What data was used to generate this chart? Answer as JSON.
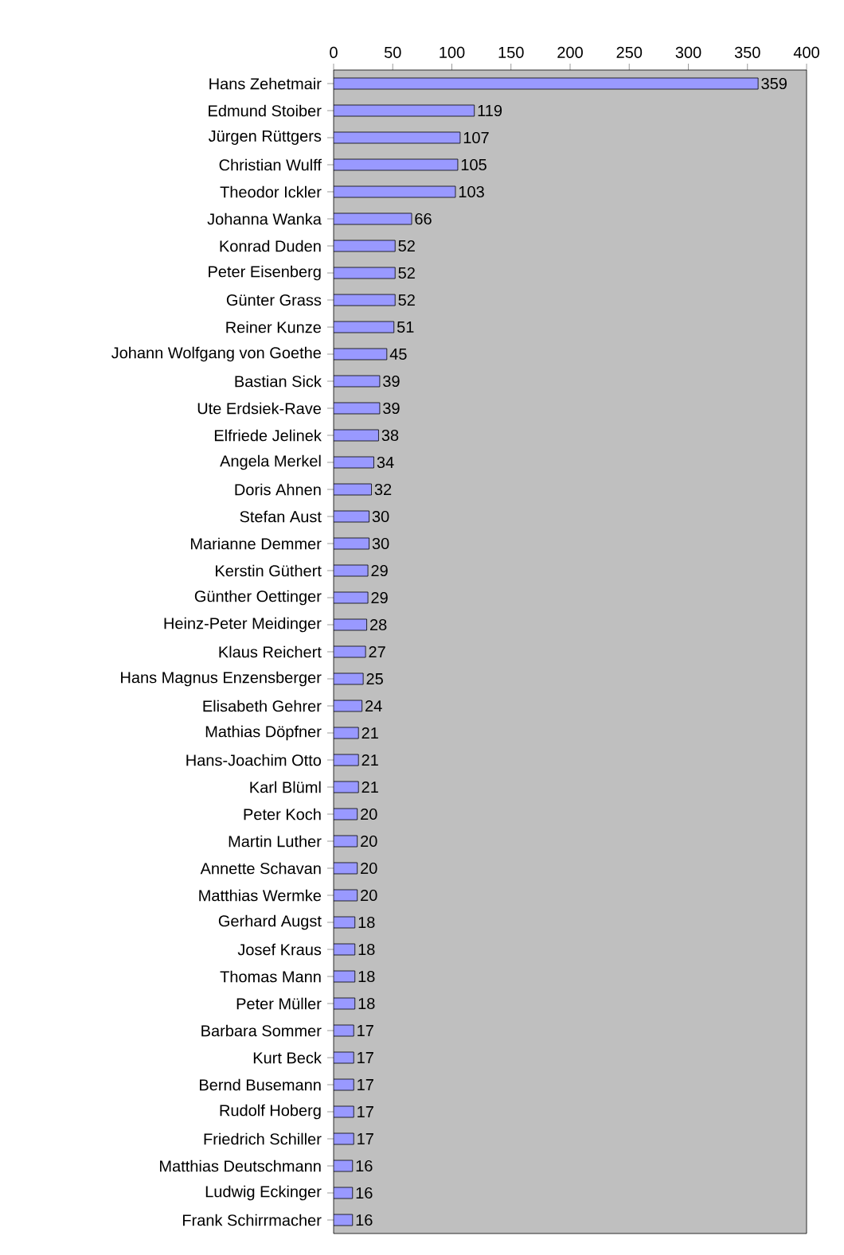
{
  "chart_data": {
    "type": "bar",
    "orientation": "horizontal",
    "categories": [
      "Hans Zehetmair",
      "Edmund Stoiber",
      "Jürgen Rüttgers",
      "Christian Wulff",
      "Theodor Ickler",
      "Johanna Wanka",
      "Konrad Duden",
      "Peter Eisenberg",
      "Günter Grass",
      "Reiner Kunze",
      "Johann Wolfgang von Goethe",
      "Bastian Sick",
      "Ute Erdsiek-Rave",
      "Elfriede Jelinek",
      "Angela Merkel",
      "Doris Ahnen",
      "Stefan Aust",
      "Marianne Demmer",
      "Kerstin Güthert",
      "Günther Oettinger",
      "Heinz-Peter Meidinger",
      "Klaus Reichert",
      "Hans Magnus Enzensberger",
      "Elisabeth Gehrer",
      "Mathias Döpfner",
      "Hans-Joachim Otto",
      "Karl Blüml",
      "Peter Koch",
      "Martin Luther",
      "Annette Schavan",
      "Matthias Wermke",
      "Gerhard Augst",
      "Josef Kraus",
      "Thomas Mann",
      "Peter Müller",
      "Barbara Sommer",
      "Kurt Beck",
      "Bernd Busemann",
      "Rudolf Hoberg",
      "Friedrich Schiller",
      "Matthias Deutschmann",
      "Ludwig Eckinger",
      "Frank Schirrmacher"
    ],
    "values": [
      359,
      119,
      107,
      105,
      103,
      66,
      52,
      52,
      52,
      51,
      45,
      39,
      39,
      38,
      34,
      32,
      30,
      30,
      29,
      29,
      28,
      27,
      25,
      24,
      21,
      21,
      21,
      20,
      20,
      20,
      20,
      18,
      18,
      18,
      18,
      17,
      17,
      17,
      17,
      17,
      16,
      16,
      16
    ],
    "color": "#9999ff",
    "xlim": [
      0,
      400
    ],
    "xticks": [
      0,
      50,
      100,
      150,
      200,
      250,
      300,
      350,
      400
    ],
    "data_labels": true
  }
}
